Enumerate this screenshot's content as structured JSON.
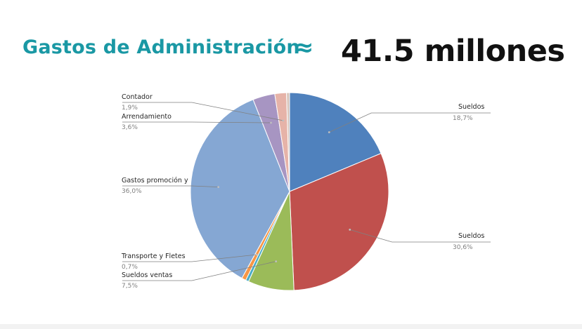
{
  "header": {
    "title": "Gastos de Administración",
    "approx_symbol": "≈",
    "total": "41.5 millones"
  },
  "chart_data": {
    "type": "pie",
    "start_angle_deg": 0,
    "direction": "clockwise",
    "slices": [
      {
        "label": "Sueldos",
        "value_label": "18,7%",
        "value": 18.7,
        "color": "#4f81bd"
      },
      {
        "label": "Sueldos",
        "value_label": "30,6%",
        "value": 30.6,
        "color": "#c0504d"
      },
      {
        "label": "Sueldos ventas",
        "value_label": "7,5%",
        "value": 7.5,
        "color": "#9bbb59"
      },
      {
        "label": "",
        "value_label": "",
        "value": 0.5,
        "color": "#4bacc6"
      },
      {
        "label": "Transporte y Fletes",
        "value_label": "0,7%",
        "value": 0.7,
        "color": "#f79646"
      },
      {
        "label": "Gastos promoción y",
        "value_label": "36,0%",
        "value": 36.0,
        "color": "#85a7d3"
      },
      {
        "label": "Arrendamiento",
        "value_label": "3,6%",
        "value": 3.6,
        "color": "#a795c2"
      },
      {
        "label": "Contador",
        "value_label": "1,9%",
        "value": 1.9,
        "color": "#e6b3a8"
      },
      {
        "label": "",
        "value_label": "",
        "value": 0.5,
        "color": "#d7c5bb"
      }
    ],
    "legend": "none"
  }
}
